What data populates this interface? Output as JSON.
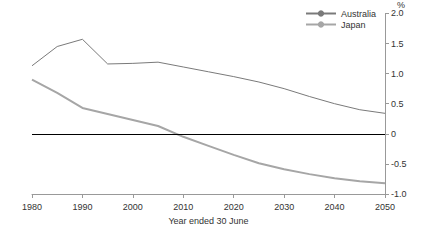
{
  "chart_data": {
    "type": "line",
    "xlabel": "Year ended 30 June",
    "ylabel": "%",
    "x": [
      1980,
      1985,
      1990,
      1995,
      2000,
      2005,
      2010,
      2015,
      2020,
      2025,
      2030,
      2035,
      2040,
      2045,
      2050
    ],
    "series": [
      {
        "name": "Australia",
        "color": "#7a7a7a",
        "values": [
          1.13,
          1.45,
          1.57,
          1.16,
          1.17,
          1.19,
          1.11,
          1.03,
          0.95,
          0.86,
          0.75,
          0.62,
          0.5,
          0.4,
          0.34
        ]
      },
      {
        "name": "Japan",
        "color": "#a6a6a6",
        "values": [
          0.9,
          0.68,
          0.43,
          0.33,
          0.23,
          0.13,
          -0.05,
          -0.2,
          -0.35,
          -0.49,
          -0.59,
          -0.67,
          -0.74,
          -0.79,
          -0.82
        ]
      }
    ],
    "xlim": [
      1980,
      2050
    ],
    "xticks": [
      1980,
      1990,
      2000,
      2010,
      2020,
      2030,
      2040,
      2050
    ],
    "ylim": [
      -1.0,
      2.0
    ],
    "yticks": [
      {
        "value": -1.0,
        "label": "-1.0"
      },
      -0.5,
      0,
      0.5,
      {
        "value": 1.0,
        "label": "1.0"
      },
      1.5,
      {
        "value": 2.0,
        "label": "2.0"
      }
    ],
    "legend": "top-right",
    "grid": false
  }
}
